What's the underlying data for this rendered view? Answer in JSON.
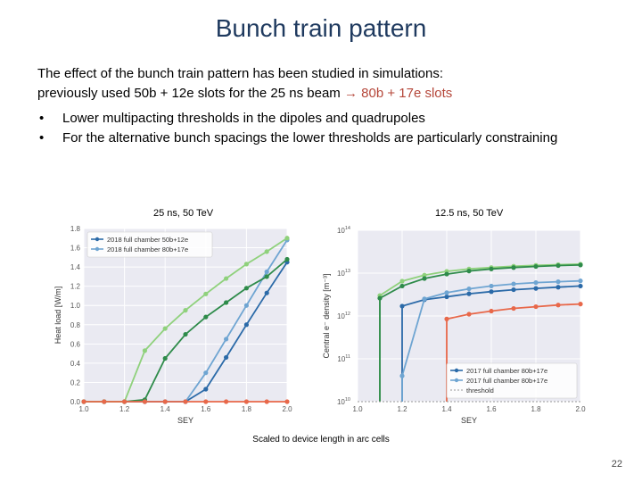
{
  "slide": {
    "title": "Bunch train pattern",
    "intro_line1": "The effect of the bunch train pattern has been studied in simulations:",
    "intro_line2_prefix": "previously used 50b + 12e slots for the 25 ns beam ",
    "intro_arrow": "→",
    "intro_line2_highlight": "80b + 17e slots",
    "bullet_char": "•",
    "bullets": [
      "Lower multipacting thresholds in the dipoles and quadrupoles",
      "For the alternative bunch spacings the lower thresholds are particularly constraining"
    ],
    "caption_left": "25 ns, 50 TeV",
    "caption_right": "12.5 ns, 50 TeV",
    "footnote": "Scaled to device length in arc cells",
    "page_number": "22"
  },
  "chart_data": [
    {
      "type": "line",
      "xlabel": "SEY",
      "ylabel": "Heat load [W/m]",
      "xlim": [
        1.0,
        2.0
      ],
      "ylim": [
        0,
        1.8
      ],
      "xticks": [
        "1.0",
        "1.2",
        "1.4",
        "1.6",
        "1.8",
        "2.0"
      ],
      "yticks": [
        "0.0",
        "0.2",
        "0.4",
        "0.6",
        "0.8",
        "1.0",
        "1.2",
        "1.4",
        "1.6",
        "1.8"
      ],
      "grid": true,
      "legend_position": "top-left",
      "x": [
        1.0,
        1.1,
        1.2,
        1.3,
        1.4,
        1.5,
        1.6,
        1.7,
        1.8,
        1.9,
        2.0
      ],
      "series": [
        {
          "name": "2018 full chamber 50b+12e",
          "color": "#2b6aa8",
          "values": [
            0,
            0,
            0,
            0,
            0,
            0,
            0.13,
            0.46,
            0.8,
            1.13,
            1.45
          ]
        },
        {
          "name": "2018 full chamber 80b+17e",
          "color": "#6fa5d2",
          "values": [
            0,
            0,
            0,
            0,
            0,
            0,
            0.3,
            0.65,
            1.0,
            1.35,
            1.68
          ]
        },
        {
          "name": "",
          "color": "#2e8b4a",
          "values": [
            0,
            0,
            0,
            0.02,
            0.45,
            0.7,
            0.88,
            1.03,
            1.18,
            1.3,
            1.48
          ]
        },
        {
          "name": "",
          "color": "#8fd17c",
          "values": [
            0,
            0,
            0,
            0.53,
            0.76,
            0.95,
            1.12,
            1.28,
            1.43,
            1.56,
            1.7
          ]
        },
        {
          "name": "",
          "color": "#e8684a",
          "values": [
            0,
            0,
            0,
            0,
            0,
            0,
            0,
            0,
            0,
            0,
            0
          ]
        }
      ]
    },
    {
      "type": "line",
      "xlabel": "SEY",
      "ylabel": "Central e⁻ density [m⁻³]",
      "xlim": [
        1.0,
        2.0
      ],
      "ylim": [
        10000000000.0,
        100000000000000.0
      ],
      "yscale": "log",
      "xticks": [
        "1.0",
        "1.2",
        "1.4",
        "1.6",
        "1.8",
        "2.0"
      ],
      "yticks": [
        {
          "value": 10000000000.0,
          "label": "10",
          "exp": "10"
        },
        {
          "value": 100000000000.0,
          "label": "10",
          "exp": "11"
        },
        {
          "value": 1000000000000.0,
          "label": "10",
          "exp": "12"
        },
        {
          "value": 10000000000000.0,
          "label": "10",
          "exp": "13"
        },
        {
          "value": 100000000000000.0,
          "label": "10",
          "exp": "14"
        }
      ],
      "grid": true,
      "legend_position": "bottom-right",
      "series": [
        {
          "name": "",
          "color": "#8fd17c",
          "x": [
            1.1,
            1.2,
            1.3,
            1.4,
            1.5,
            1.6,
            1.7,
            1.8,
            1.9,
            2.0
          ],
          "values": [
            3000000000000.0,
            6500000000000.0,
            9000000000000.0,
            11000000000000.0,
            12500000000000.0,
            13500000000000.0,
            14500000000000.0,
            15200000000000.0,
            15800000000000.0,
            16200000000000.0
          ]
        },
        {
          "name": "",
          "color": "#2e8b4a",
          "x": [
            1.1,
            1.2,
            1.3,
            1.4,
            1.5,
            1.6,
            1.7,
            1.8,
            1.9,
            2.0
          ],
          "values": [
            2600000000000.0,
            5000000000000.0,
            7500000000000.0,
            9500000000000.0,
            11200000000000.0,
            12500000000000.0,
            13500000000000.0,
            14300000000000.0,
            15000000000000.0,
            15500000000000.0
          ]
        },
        {
          "name": "2017 full chamber 80b+17e",
          "color": "#2b6aa8",
          "x": [
            1.2,
            1.3,
            1.4,
            1.5,
            1.6,
            1.7,
            1.8,
            1.9,
            2.0
          ],
          "values": [
            1700000000000.0,
            2400000000000.0,
            2800000000000.0,
            3300000000000.0,
            3700000000000.0,
            4100000000000.0,
            4400000000000.0,
            4700000000000.0,
            5000000000000.0
          ]
        },
        {
          "name": "2017 full chamber 80b+17e",
          "color": "#6fa5d2",
          "x": [
            1.2,
            1.3,
            1.4,
            1.5,
            1.6,
            1.7,
            1.8,
            1.9,
            2.0
          ],
          "values": [
            40000000000.0,
            2500000000000.0,
            3500000000000.0,
            4300000000000.0,
            5000000000000.0,
            5600000000000.0,
            6000000000000.0,
            6300000000000.0,
            6600000000000.0
          ]
        },
        {
          "name": "",
          "color": "#e8684a",
          "x": [
            1.4,
            1.5,
            1.6,
            1.7,
            1.8,
            1.9,
            2.0
          ],
          "values": [
            850000000000.0,
            1100000000000.0,
            1300000000000.0,
            1500000000000.0,
            1650000000000.0,
            1800000000000.0,
            1900000000000.0
          ]
        },
        {
          "name": "threshold",
          "color": "#999999",
          "dashed": true,
          "x": [
            1.0,
            2.0
          ],
          "values": [
            10000000000.0,
            10000000000.0
          ]
        }
      ]
    }
  ]
}
